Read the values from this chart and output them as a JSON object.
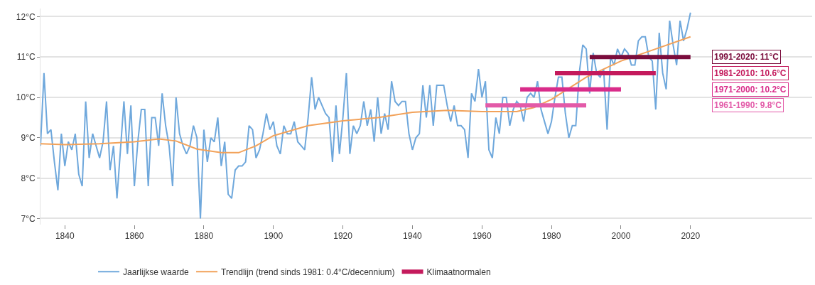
{
  "chart_data": {
    "type": "line",
    "xlim": [
      1833,
      2055
    ],
    "ylim": [
      6.85,
      12.2
    ],
    "xticks": [
      1840,
      1860,
      1880,
      1900,
      1920,
      1940,
      1960,
      1980,
      2000,
      2020
    ],
    "yticks": [
      {
        "value": 7,
        "label": "7°C"
      },
      {
        "value": 8,
        "label": "8°C"
      },
      {
        "value": 9,
        "label": "9°C"
      },
      {
        "value": 10,
        "label": "10°C"
      },
      {
        "value": 11,
        "label": "11°C"
      },
      {
        "value": 12,
        "label": "12°C"
      }
    ],
    "grid": "y",
    "legend": "bottom",
    "line_style": "solid",
    "marker": "none",
    "series": [
      {
        "name": "Jaarlijkse waarde",
        "color": "#6fa8dc",
        "x": [
          1833,
          1834,
          1835,
          1836,
          1837,
          1838,
          1839,
          1840,
          1841,
          1842,
          1843,
          1844,
          1845,
          1846,
          1847,
          1848,
          1849,
          1850,
          1851,
          1852,
          1853,
          1854,
          1855,
          1856,
          1857,
          1858,
          1859,
          1860,
          1861,
          1862,
          1863,
          1864,
          1865,
          1866,
          1867,
          1868,
          1869,
          1870,
          1871,
          1872,
          1873,
          1874,
          1875,
          1876,
          1877,
          1878,
          1879,
          1880,
          1881,
          1882,
          1883,
          1884,
          1885,
          1886,
          1887,
          1888,
          1889,
          1890,
          1891,
          1892,
          1893,
          1894,
          1895,
          1896,
          1897,
          1898,
          1899,
          1900,
          1901,
          1902,
          1903,
          1904,
          1905,
          1906,
          1907,
          1908,
          1909,
          1910,
          1911,
          1912,
          1913,
          1914,
          1915,
          1916,
          1917,
          1918,
          1919,
          1920,
          1921,
          1922,
          1923,
          1924,
          1925,
          1926,
          1927,
          1928,
          1929,
          1930,
          1931,
          1932,
          1933,
          1934,
          1935,
          1936,
          1937,
          1938,
          1939,
          1940,
          1941,
          1942,
          1943,
          1944,
          1945,
          1946,
          1947,
          1948,
          1949,
          1950,
          1951,
          1952,
          1953,
          1954,
          1955,
          1956,
          1957,
          1958,
          1959,
          1960,
          1961,
          1962,
          1963,
          1964,
          1965,
          1966,
          1967,
          1968,
          1969,
          1970,
          1971,
          1972,
          1973,
          1974,
          1975,
          1976,
          1977,
          1978,
          1979,
          1980,
          1981,
          1982,
          1983,
          1984,
          1985,
          1986,
          1987,
          1988,
          1989,
          1990,
          1991,
          1992,
          1993,
          1994,
          1995,
          1996,
          1997,
          1998,
          1999,
          2000,
          2001,
          2002,
          2003,
          2004,
          2005,
          2006,
          2007,
          2008,
          2009,
          2010,
          2011,
          2012,
          2013,
          2014,
          2015,
          2016,
          2017,
          2018,
          2019,
          2020
        ],
        "values": [
          8.8,
          10.6,
          9.1,
          9.2,
          8.4,
          7.7,
          9.1,
          8.3,
          8.9,
          8.7,
          9.1,
          8.1,
          7.8,
          9.9,
          8.5,
          9.1,
          8.8,
          8.5,
          8.9,
          9.9,
          8.2,
          8.8,
          7.5,
          8.7,
          9.9,
          8.6,
          9.8,
          7.8,
          8.9,
          9.7,
          9.7,
          7.8,
          9.5,
          9.5,
          8.8,
          10.1,
          9.3,
          8.8,
          7.8,
          10.0,
          9.1,
          8.8,
          8.6,
          8.8,
          9.3,
          9.0,
          7.0,
          9.2,
          8.4,
          9.0,
          8.9,
          9.5,
          8.3,
          8.9,
          7.6,
          7.5,
          8.2,
          8.3,
          8.3,
          8.4,
          9.3,
          9.2,
          8.5,
          8.7,
          9.1,
          9.6,
          9.2,
          9.4,
          8.8,
          8.6,
          9.3,
          9.1,
          9.1,
          9.4,
          8.9,
          8.8,
          8.7,
          9.5,
          10.5,
          9.7,
          10.0,
          9.8,
          9.6,
          9.5,
          8.4,
          9.8,
          8.6,
          9.5,
          10.6,
          8.6,
          9.3,
          9.1,
          9.3,
          9.9,
          9.3,
          9.7,
          8.9,
          10.0,
          9.1,
          9.6,
          9.2,
          10.4,
          9.9,
          9.8,
          9.9,
          9.9,
          9.1,
          8.7,
          9.0,
          9.1,
          10.3,
          9.5,
          10.3,
          9.3,
          10.3,
          10.3,
          10.3,
          9.8,
          9.4,
          9.8,
          9.3,
          9.3,
          9.2,
          8.5,
          10.1,
          9.9,
          10.7,
          10.0,
          10.4,
          8.7,
          8.5,
          9.5,
          9.1,
          10.0,
          10.0,
          9.3,
          9.7,
          9.9,
          9.8,
          9.4,
          10.0,
          10.1,
          10.0,
          10.4,
          9.7,
          9.4,
          9.1,
          9.4,
          10.0,
          10.5,
          10.5,
          9.6,
          9.0,
          9.3,
          9.3,
          10.6,
          11.3,
          11.2,
          10.1,
          11.1,
          10.6,
          10.5,
          10.7,
          9.2,
          11.0,
          10.8,
          11.2,
          11.0,
          11.2,
          11.1,
          10.8,
          10.8,
          11.4,
          11.5,
          11.5,
          11.0,
          10.9,
          9.7,
          11.6,
          10.6,
          10.2,
          11.9,
          11.3,
          10.8,
          11.9,
          11.4,
          11.7,
          12.1
        ]
      },
      {
        "name": "Trendlijn (trend sinds 1981: 0.4°C/decennium)",
        "color": "#f2a25a",
        "x": [
          1833,
          1840,
          1850,
          1860,
          1867,
          1872,
          1878,
          1885,
          1890,
          1895,
          1900,
          1910,
          1920,
          1930,
          1940,
          1950,
          1960,
          1970,
          1975,
          1980,
          1990,
          2000,
          2010,
          2020
        ],
        "values": [
          8.85,
          8.83,
          8.85,
          8.9,
          8.97,
          8.92,
          8.72,
          8.63,
          8.63,
          8.8,
          9.05,
          9.3,
          9.42,
          9.5,
          9.63,
          9.68,
          9.65,
          9.65,
          9.75,
          9.95,
          10.5,
          10.9,
          11.2,
          11.5
        ]
      },
      {
        "color": "#e35aa8",
        "x": [
          1961,
          1990
        ],
        "values": [
          9.8,
          9.8
        ]
      },
      {
        "color": "#d92c8a",
        "x": [
          1971,
          2000
        ],
        "values": [
          10.2,
          10.2
        ]
      },
      {
        "name": "Klimaatnormalen",
        "color": "#c41a5c",
        "x": [
          1981,
          2010
        ],
        "values": [
          10.6,
          10.6
        ]
      },
      {
        "color": "#7a0c3c",
        "x": [
          1991,
          2020
        ],
        "values": [
          11,
          11
        ]
      }
    ],
    "annotations": [
      "1961-1990: 9.8°C",
      "1971-2000: 10.2°C",
      "1981-2010: 10.6°C",
      "1991-2020: 11°C"
    ]
  }
}
